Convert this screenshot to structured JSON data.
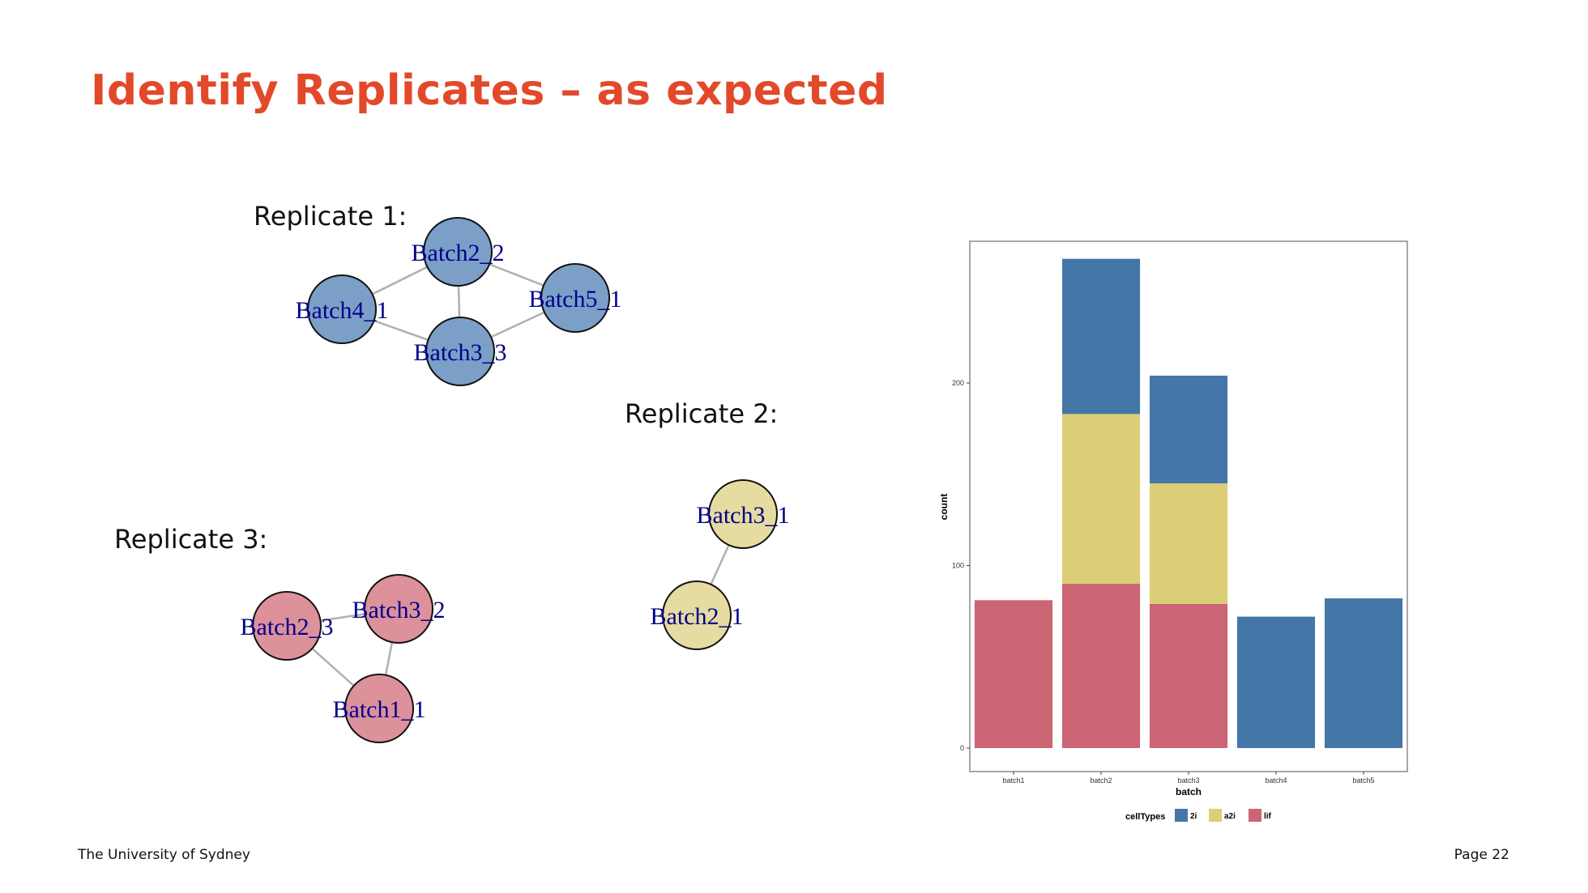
{
  "slide": {
    "title": "Identify Replicates – as expected",
    "footer_left": "The University of Sydney",
    "footer_right": "Page 22"
  },
  "replicates": [
    {
      "label": "Replicate 1:",
      "color": "#7b9fc7",
      "nodes": [
        "Batch2_2",
        "Batch4_1",
        "Batch5_1",
        "Batch3_3"
      ]
    },
    {
      "label": "Replicate 2:",
      "color": "#e6dba0",
      "nodes": [
        "Batch3_1",
        "Batch2_1"
      ]
    },
    {
      "label": "Replicate 3:",
      "color": "#dc919b",
      "nodes": [
        "Batch3_2",
        "Batch2_3",
        "Batch1_1"
      ]
    }
  ],
  "graph_style": {
    "node_label_color": "#00008b",
    "edge_color": "#b0b0b0"
  },
  "chart_data": {
    "type": "bar",
    "stacked": true,
    "xlabel": "batch",
    "ylabel": "count",
    "categories": [
      "batch1",
      "batch2",
      "batch3",
      "batch4",
      "batch5"
    ],
    "series": [
      {
        "name": "lif",
        "color": "#cc6574",
        "values": [
          81,
          90,
          79,
          0,
          0
        ]
      },
      {
        "name": "a2i",
        "color": "#dccd77",
        "values": [
          0,
          93,
          66,
          0,
          0
        ]
      },
      {
        "name": "2i",
        "color": "#4477a8",
        "values": [
          0,
          85,
          59,
          72,
          82
        ]
      }
    ],
    "yticks": [
      0,
      100,
      200
    ],
    "ylim": [
      0,
      290
    ],
    "legend_title": "cellTypes",
    "legend_order": [
      "2i",
      "a2i",
      "lif"
    ],
    "legend_position": "bottom"
  }
}
